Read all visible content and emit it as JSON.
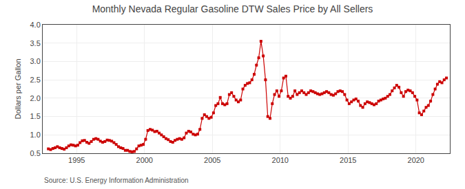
{
  "chart_data": {
    "type": "line",
    "title": "Monthly Nevada Regular Gasoline DTW Sales Price by All Sellers",
    "ylabel": "Dollars per Gallon",
    "annotations": [
      "Source: U.S. Energy Information Administration"
    ],
    "xlim": [
      1992.5,
      2022.5
    ],
    "xticks": [
      1995,
      2000,
      2005,
      2010,
      2015,
      2020
    ],
    "ylim": [
      0.5,
      4.0
    ],
    "yticks": [
      0.5,
      {
        "value": 1.0,
        "label": "1.0"
      },
      1.5,
      {
        "value": 2.0,
        "label": "2.0"
      },
      2.5,
      {
        "value": 3.0,
        "label": "3.0"
      },
      3.5,
      {
        "value": 4.0,
        "label": "4.0"
      }
    ],
    "grid": true,
    "color": "#cc0000",
    "marker": "square",
    "line_style": "solid",
    "x": [
      1992.917,
      1993.083,
      1993.25,
      1993.417,
      1993.583,
      1993.75,
      1993.917,
      1994.083,
      1994.25,
      1994.417,
      1994.583,
      1994.75,
      1994.917,
      1995.083,
      1995.25,
      1995.417,
      1995.583,
      1995.75,
      1995.917,
      1996.083,
      1996.25,
      1996.417,
      1996.583,
      1996.75,
      1996.917,
      1997.083,
      1997.25,
      1997.417,
      1997.583,
      1997.75,
      1997.917,
      1998.083,
      1998.25,
      1998.417,
      1998.583,
      1998.75,
      1998.917,
      1999.083,
      1999.25,
      1999.417,
      1999.583,
      1999.75,
      1999.917,
      2000.083,
      2000.25,
      2000.417,
      2000.583,
      2000.75,
      2000.917,
      2001.083,
      2001.25,
      2001.417,
      2001.583,
      2001.75,
      2001.917,
      2002.083,
      2002.25,
      2002.417,
      2002.583,
      2002.75,
      2002.917,
      2003.083,
      2003.25,
      2003.417,
      2003.583,
      2003.75,
      2003.917,
      2004.083,
      2004.25,
      2004.417,
      2004.583,
      2004.75,
      2004.917,
      2005.083,
      2005.25,
      2005.417,
      2005.583,
      2005.75,
      2005.917,
      2006.083,
      2006.25,
      2006.417,
      2006.583,
      2006.75,
      2006.917,
      2007.083,
      2007.25,
      2007.417,
      2007.583,
      2007.75,
      2007.917,
      2008.083,
      2008.25,
      2008.417,
      2008.583,
      2008.75,
      2008.917,
      2009.083,
      2009.25,
      2009.417,
      2009.583,
      2009.75,
      2009.917,
      2010.083,
      2010.25,
      2010.417,
      2010.583,
      2010.75,
      2010.917,
      2011.083,
      2011.25,
      2011.417,
      2011.583,
      2011.75,
      2011.917,
      2012.083,
      2012.25,
      2012.417,
      2012.583,
      2012.75,
      2012.917,
      2013.083,
      2013.25,
      2013.417,
      2013.583,
      2013.75,
      2013.917,
      2014.083,
      2014.25,
      2014.417,
      2014.583,
      2014.75,
      2014.917,
      2015.083,
      2015.25,
      2015.417,
      2015.583,
      2015.75,
      2015.917,
      2016.083,
      2016.25,
      2016.417,
      2016.583,
      2016.75,
      2016.917,
      2017.083,
      2017.25,
      2017.417,
      2017.583,
      2017.75,
      2017.917,
      2018.083,
      2018.25,
      2018.417,
      2018.583,
      2018.75,
      2018.917,
      2019.083,
      2019.25,
      2019.417,
      2019.583,
      2019.75,
      2019.917,
      2020.083,
      2020.25,
      2020.417,
      2020.583,
      2020.75,
      2020.917,
      2021.083,
      2021.25,
      2021.417,
      2021.583,
      2021.75,
      2021.917,
      2022.083,
      2022.25
    ],
    "values": [
      0.62,
      0.6,
      0.63,
      0.65,
      0.68,
      0.65,
      0.63,
      0.61,
      0.65,
      0.7,
      0.73,
      0.72,
      0.7,
      0.72,
      0.79,
      0.84,
      0.85,
      0.8,
      0.77,
      0.82,
      0.88,
      0.9,
      0.88,
      0.83,
      0.8,
      0.82,
      0.86,
      0.85,
      0.83,
      0.79,
      0.74,
      0.68,
      0.65,
      0.63,
      0.58,
      0.58,
      0.55,
      0.54,
      0.55,
      0.62,
      0.7,
      0.72,
      0.74,
      0.88,
      1.12,
      1.15,
      1.13,
      1.09,
      1.1,
      1.05,
      1.0,
      0.95,
      0.9,
      0.87,
      0.82,
      0.8,
      0.85,
      0.88,
      0.9,
      0.88,
      0.92,
      1.05,
      1.1,
      1.08,
      1.02,
      1.0,
      1.02,
      1.15,
      1.45,
      1.55,
      1.5,
      1.45,
      1.48,
      1.6,
      1.8,
      1.85,
      2.02,
      1.85,
      1.82,
      1.85,
      2.1,
      2.15,
      2.05,
      1.95,
      1.9,
      1.95,
      2.25,
      2.35,
      2.4,
      2.42,
      2.5,
      2.65,
      2.9,
      3.1,
      3.55,
      3.15,
      2.5,
      1.5,
      1.45,
      1.85,
      2.1,
      2.2,
      2.05,
      2.2,
      2.55,
      2.6,
      2.05,
      2.0,
      2.05,
      2.2,
      2.1,
      2.15,
      2.2,
      2.15,
      2.1,
      2.15,
      2.2,
      2.18,
      2.15,
      2.12,
      2.1,
      2.12,
      2.15,
      2.18,
      2.15,
      2.1,
      2.08,
      2.12,
      2.18,
      2.2,
      2.18,
      2.1,
      1.95,
      1.85,
      1.9,
      1.95,
      1.98,
      1.92,
      1.8,
      1.75,
      1.85,
      1.9,
      1.88,
      1.85,
      1.82,
      1.85,
      1.92,
      1.95,
      1.98,
      2.0,
      2.05,
      2.1,
      2.2,
      2.28,
      2.35,
      2.3,
      2.15,
      2.05,
      2.18,
      2.22,
      2.2,
      2.15,
      2.05,
      1.95,
      1.6,
      1.55,
      1.65,
      1.75,
      1.8,
      1.92,
      2.1,
      2.25,
      2.38,
      2.45,
      2.42,
      2.5,
      2.55
    ]
  }
}
